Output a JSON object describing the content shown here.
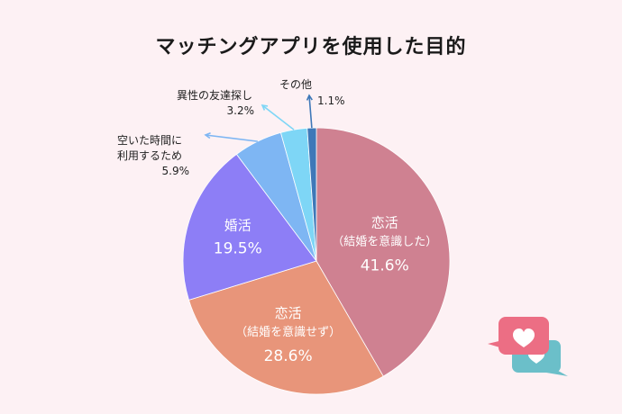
{
  "chart_data": {
    "type": "pie",
    "title": "マッチングアプリを使用した目的",
    "slices": [
      {
        "label": [
          "恋活",
          "（結婚を意識した）"
        ],
        "value": 41.6,
        "value_label": "41.6%",
        "color": "#cf8191"
      },
      {
        "label": [
          "恋活",
          "（結婚を意識せず）"
        ],
        "value": 28.6,
        "value_label": "28.6%",
        "color": "#e8957a"
      },
      {
        "label": [
          "婚活"
        ],
        "value": 19.5,
        "value_label": "19.5%",
        "color": "#8d7ef6"
      },
      {
        "label": [
          "空いた時間に",
          "利用するため"
        ],
        "value": 5.9,
        "value_label": "5.9%",
        "color": "#7eb6f3"
      },
      {
        "label": [
          "異性の友達探し"
        ],
        "value": 3.2,
        "value_label": "3.2%",
        "color": "#7ed6f6"
      },
      {
        "label": [
          "その他"
        ],
        "value": 1.1,
        "value_label": "1.1%",
        "color": "#3e78b8"
      }
    ]
  },
  "colors": {
    "background": "#fdf1f4",
    "heart_bubble": "#ec6e84",
    "heart_bubble_back": "#6bbfc9"
  },
  "icons": [
    "heart-chat-bubble-icon"
  ]
}
